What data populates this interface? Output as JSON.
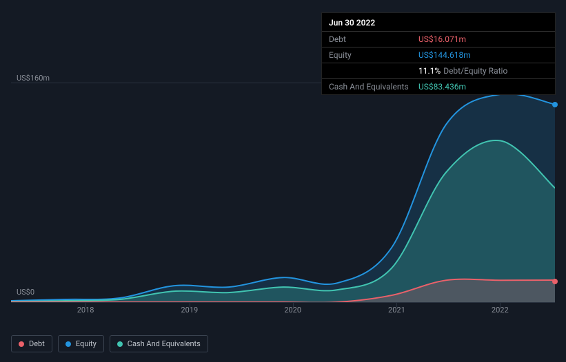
{
  "tooltip": {
    "title": "Jun 30 2022",
    "rows": [
      {
        "label": "Debt",
        "value": "US$16.071m",
        "color": "#eb616a"
      },
      {
        "label": "Equity",
        "value": "US$144.618m",
        "color": "#2394df"
      },
      {
        "label": "",
        "value": "11.1%",
        "note": "Debt/Equity Ratio",
        "color": "#ffffff"
      },
      {
        "label": "Cash And Equivalents",
        "value": "US$83.436m",
        "color": "#41c4b1"
      }
    ]
  },
  "chart": {
    "type": "area",
    "background": "#141a24",
    "grid_color": "#2a3340",
    "y_top_label": "US$160m",
    "y_bottom_label": "US$0",
    "y_max": 160,
    "y_min": 0,
    "x_dates": [
      "2017.5",
      "2018",
      "2018.5",
      "2019",
      "2019.5",
      "2020",
      "2020.5",
      "2021",
      "2021.5",
      "2022",
      "2022.75"
    ],
    "x_ticks": [
      {
        "label": "2018",
        "pos": 0.137
      },
      {
        "label": "2019",
        "pos": 0.328
      },
      {
        "label": "2020",
        "pos": 0.518
      },
      {
        "label": "2021",
        "pos": 0.709
      },
      {
        "label": "2022",
        "pos": 0.899
      }
    ],
    "series": [
      {
        "name": "Equity",
        "color": "#2394df",
        "fill": "rgba(35,148,223,0.18)",
        "values": [
          1,
          2,
          3,
          12,
          11,
          18,
          14,
          40,
          130,
          152,
          144.6
        ]
      },
      {
        "name": "Cash And Equivalents",
        "color": "#41c4b1",
        "fill": "rgba(65,196,177,0.25)",
        "values": [
          0.5,
          1,
          2,
          8,
          7,
          11,
          9,
          25,
          95,
          118,
          83.4
        ]
      },
      {
        "name": "Debt",
        "color": "#eb616a",
        "fill": "rgba(235,97,106,0.22)",
        "values": [
          0,
          0,
          0,
          0,
          0,
          0,
          0,
          5,
          16,
          16,
          16.1
        ]
      }
    ],
    "markers": [
      {
        "color": "#2394df",
        "y": 144.6
      },
      {
        "color": "#eb616a",
        "y": 16.1
      }
    ]
  },
  "legend": [
    {
      "label": "Debt",
      "color": "#eb616a"
    },
    {
      "label": "Equity",
      "color": "#2394df"
    },
    {
      "label": "Cash And Equivalents",
      "color": "#41c4b1"
    }
  ]
}
